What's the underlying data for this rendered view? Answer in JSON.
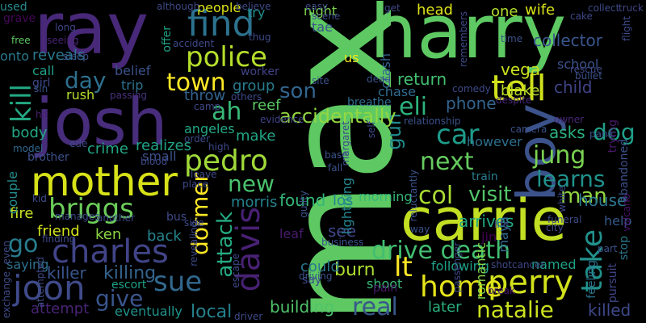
{
  "words": [
    {
      "text": "max",
      "color": "#5ec962",
      "vertical": true
    },
    {
      "text": "harry",
      "color": "#5ec962",
      "vertical": false
    },
    {
      "text": "ray",
      "color": "#482878",
      "vertical": false
    },
    {
      "text": "josh",
      "color": "#472d7b",
      "vertical": false
    },
    {
      "text": "carrie",
      "color": "#c2df23",
      "vertical": false
    },
    {
      "text": "mother",
      "color": "#d8e219",
      "vertical": false
    },
    {
      "text": "boy",
      "color": "#3b528b",
      "vertical": true
    },
    {
      "text": "find",
      "color": "#2c728e",
      "vertical": false
    },
    {
      "text": "tell",
      "color": "#d0e11c",
      "vertical": false
    },
    {
      "text": "police",
      "color": "#b5de2b",
      "vertical": false
    },
    {
      "text": "town",
      "color": "#fde725",
      "vertical": false
    },
    {
      "text": "charles",
      "color": "#414487",
      "vertical": false
    },
    {
      "text": "davis",
      "color": "#482173",
      "vertical": true
    },
    {
      "text": "joon",
      "color": "#3e4a89",
      "vertical": false
    },
    {
      "text": "perry",
      "color": "#d2e21b",
      "vertical": false
    },
    {
      "text": "drive death",
      "color": "#42be71",
      "vertical": false
    },
    {
      "text": "home",
      "color": "#e5e419",
      "vertical": false
    },
    {
      "text": "pedro",
      "color": "#a0da39",
      "vertical": false
    },
    {
      "text": "dog",
      "color": "#1f9f88",
      "vertical": false
    },
    {
      "text": "car",
      "color": "#1e9b8a",
      "vertical": false
    },
    {
      "text": "next",
      "color": "#65cb5e",
      "vertical": false
    },
    {
      "text": "col",
      "color": "#aadc32",
      "vertical": false
    },
    {
      "text": "jung",
      "color": "#7ad151",
      "vertical": false
    },
    {
      "text": "take",
      "color": "#21918c",
      "vertical": true
    },
    {
      "text": "briggs",
      "color": "#6ccd5a",
      "vertical": false
    },
    {
      "text": "kill",
      "color": "#23a983",
      "vertical": true
    },
    {
      "text": "go",
      "color": "#287c8e",
      "vertical": false
    },
    {
      "text": "lt",
      "color": "#fde725",
      "vertical": false
    },
    {
      "text": "dormer",
      "color": "#fde725",
      "vertical": true
    },
    {
      "text": "attack",
      "color": "#25ac82",
      "vertical": true
    },
    {
      "text": "sue",
      "color": "#31688e",
      "vertical": false
    },
    {
      "text": "real",
      "color": "#38588c",
      "vertical": false
    },
    {
      "text": "natalie",
      "color": "#cae11f",
      "vertical": false
    },
    {
      "text": "give",
      "color": "#3a548c",
      "vertical": false
    },
    {
      "text": "day",
      "color": "#2d708e",
      "vertical": false
    },
    {
      "text": "ah",
      "color": "#38b977",
      "vertical": false
    },
    {
      "text": "son",
      "color": "#32658e",
      "vertical": false
    },
    {
      "text": "eli",
      "color": "#2db27d",
      "vertical": false
    },
    {
      "text": "gun",
      "color": "#228c8d",
      "vertical": true
    },
    {
      "text": "new",
      "color": "#4ac16d",
      "vertical": false
    },
    {
      "text": "learns",
      "color": "#20928c",
      "vertical": false
    },
    {
      "text": "visit",
      "color": "#52c569",
      "vertical": false
    },
    {
      "text": "man",
      "color": "#93d741",
      "vertical": false
    },
    {
      "text": "return",
      "color": "#43bf71",
      "vertical": false
    },
    {
      "text": "phone",
      "color": "#33638d",
      "vertical": false
    },
    {
      "text": "accidentally",
      "color": "#93d741",
      "vertical": false
    },
    {
      "text": "building",
      "color": "#50c46a",
      "vertical": false
    },
    {
      "text": "killer",
      "color": "#39558c",
      "vertical": false
    },
    {
      "text": "killing",
      "color": "#33638d",
      "vertical": false
    },
    {
      "text": "killed",
      "color": "#3f4889",
      "vertical": false
    },
    {
      "text": "local",
      "color": "#26828e",
      "vertical": false
    },
    {
      "text": "attempt",
      "color": "#482475",
      "vertical": false
    },
    {
      "text": "eventually",
      "color": "#20938c",
      "vertical": false
    },
    {
      "text": "later",
      "color": "#29af7f",
      "vertical": false
    },
    {
      "text": "found",
      "color": "#34b679",
      "vertical": false
    },
    {
      "text": "see",
      "color": "#3f4788",
      "vertical": false
    },
    {
      "text": "burn",
      "color": "#addc30",
      "vertical": false
    },
    {
      "text": "could",
      "color": "#29798e",
      "vertical": false
    },
    {
      "text": "shoot",
      "color": "#37b878",
      "vertical": false
    },
    {
      "text": "lightning",
      "color": "#24868e",
      "vertical": true
    },
    {
      "text": "morning",
      "color": "#35b779",
      "vertical": false
    },
    {
      "text": "arrives",
      "color": "#22a884",
      "vertical": false
    },
    {
      "text": "house",
      "color": "#2a778e",
      "vertical": false
    },
    {
      "text": "help",
      "color": "#38598c",
      "vertical": false
    },
    {
      "text": "feeling",
      "color": "#2c728e",
      "vertical": true
    },
    {
      "text": "pursuit",
      "color": "#404688",
      "vertical": true
    },
    {
      "text": "stop",
      "color": "#2a788e",
      "vertical": true
    },
    {
      "text": "following",
      "color": "#1fa088",
      "vertical": false
    },
    {
      "text": "pain",
      "color": "#48186a",
      "vertical": false
    },
    {
      "text": "say",
      "color": "#3e4a89",
      "vertical": false
    },
    {
      "text": "maya",
      "color": "#306a8e",
      "vertical": true
    },
    {
      "text": "jin",
      "color": "#440154",
      "vertical": false
    },
    {
      "text": "however",
      "color": "#2e6f8e",
      "vertical": false
    },
    {
      "text": "named",
      "color": "#1fa187",
      "vertical": false
    },
    {
      "text": "asks",
      "color": "#2ab07f",
      "vertical": false
    },
    {
      "text": "child",
      "color": "#404387",
      "vertical": false
    },
    {
      "text": "school",
      "color": "#3b528b",
      "vertical": false
    },
    {
      "text": "blake",
      "color": "#bade28",
      "vertical": false
    },
    {
      "text": "vega",
      "color": "#cae11f",
      "vertical": false
    },
    {
      "text": "romantic",
      "color": "#86d549",
      "vertical": true
    },
    {
      "text": "collector",
      "color": "#39568c",
      "vertical": false
    },
    {
      "text": "head",
      "color": "#dde318",
      "vertical": false
    },
    {
      "text": "one",
      "color": "#b2dd2d",
      "vertical": false
    },
    {
      "text": "wife",
      "color": "#d8e219",
      "vertical": false
    },
    {
      "text": "night",
      "color": "#7fd34e",
      "vertical": false
    },
    {
      "text": "tae",
      "color": "#3a538b",
      "vertical": false
    },
    {
      "text": "try",
      "color": "#21908d",
      "vertical": false
    },
    {
      "text": "group",
      "color": "#297b8e",
      "vertical": false
    },
    {
      "text": "make",
      "color": "#22a785",
      "vertical": false
    },
    {
      "text": "reef",
      "color": "#5cc863",
      "vertical": false
    },
    {
      "text": "morris",
      "color": "#26828e",
      "vertical": false
    },
    {
      "text": "los",
      "color": "#24878e",
      "vertical": false
    },
    {
      "text": "leaf",
      "color": "#481b6d",
      "vertical": false
    },
    {
      "text": "realizes",
      "color": "#20a386",
      "vertical": false
    },
    {
      "text": "crime",
      "color": "#22a785",
      "vertical": false
    },
    {
      "text": "trip",
      "color": "#2d718e",
      "vertical": false
    },
    {
      "text": "throw",
      "color": "#32648e",
      "vertical": false
    },
    {
      "text": "angeles",
      "color": "#22a785",
      "vertical": false
    },
    {
      "text": "small",
      "color": "#3c508b",
      "vertical": false
    },
    {
      "text": "fire",
      "color": "#c5e021",
      "vertical": false
    },
    {
      "text": "friend",
      "color": "#d2e21b",
      "vertical": false
    },
    {
      "text": "ken",
      "color": "#8bd646",
      "vertical": false
    },
    {
      "text": "back",
      "color": "#25848e",
      "vertical": false
    },
    {
      "text": "escort",
      "color": "#1fa188",
      "vertical": false
    },
    {
      "text": "body",
      "color": "#22a785",
      "vertical": false
    },
    {
      "text": "couple",
      "color": "#238a8d",
      "vertical": true
    },
    {
      "text": "saying",
      "color": "#2d718e",
      "vertical": false
    },
    {
      "text": "reveals",
      "color": "#2a788e",
      "vertical": false
    },
    {
      "text": "call",
      "color": "#1fa088",
      "vertical": false
    },
    {
      "text": "girl",
      "color": "#3e4989",
      "vertical": false
    },
    {
      "text": "rush",
      "color": "#b5de2b",
      "vertical": false
    },
    {
      "text": "belief",
      "color": "#3b528b",
      "vertical": false
    },
    {
      "text": "crash",
      "color": "#33638d",
      "vertical": true
    },
    {
      "text": "chase",
      "color": "#2f6c8e",
      "vertical": false
    },
    {
      "text": "breathe",
      "color": "#2f6c8e",
      "vertical": false
    },
    {
      "text": "break",
      "color": "#48186a",
      "vertical": false
    },
    {
      "text": "brother",
      "color": "#3c508b",
      "vertical": false
    },
    {
      "text": "model",
      "color": "#31688e",
      "vertical": false
    },
    {
      "text": "bus",
      "color": "#3e4a89",
      "vertical": false
    },
    {
      "text": "people",
      "color": "#dde318",
      "vertical": false
    },
    {
      "text": "us",
      "color": "#f1e51d",
      "vertical": false
    },
    {
      "text": "abandoned",
      "color": "#3c508b",
      "vertical": true
    },
    {
      "text": "trying",
      "color": "#48186a",
      "vertical": true
    },
    {
      "text": "onto",
      "color": "#2a788e",
      "vertical": false
    },
    {
      "text": "grave",
      "color": "#46075a",
      "vertical": false
    },
    {
      "text": "used",
      "color": "#238a8d",
      "vertical": false
    },
    {
      "text": "offer",
      "color": "#20a386",
      "vertical": true
    },
    {
      "text": "worker",
      "color": "#404387",
      "vertical": false
    },
    {
      "text": "sleep",
      "color": "#3b528b",
      "vertical": false
    },
    {
      "text": "free",
      "color": "#5ec962",
      "vertical": false
    },
    {
      "text": "sin",
      "color": "#3b528b",
      "vertical": false
    },
    {
      "text": "passing",
      "color": "#46327e",
      "vertical": false
    },
    {
      "text": "hit",
      "color": "#481f70",
      "vertical": false
    },
    {
      "text": "long",
      "color": "#414487",
      "vertical": false
    },
    {
      "text": "seeing",
      "color": "#482475",
      "vertical": false
    },
    {
      "text": "collect",
      "color": "#3e4a89",
      "vertical": false
    },
    {
      "text": "truck",
      "color": "#404688",
      "vertical": false
    },
    {
      "text": "cake",
      "color": "#3f4788",
      "vertical": false
    },
    {
      "text": "time",
      "color": "#3b528b",
      "vertical": false
    },
    {
      "text": "flight",
      "color": "#3e4a89",
      "vertical": true
    },
    {
      "text": "rescue",
      "color": "#3e4989",
      "vertical": false
    },
    {
      "text": "bullet",
      "color": "#3b528b",
      "vertical": false
    },
    {
      "text": "funeral",
      "color": "#3e4a89",
      "vertical": false
    },
    {
      "text": "panic",
      "color": "#3b528b",
      "vertical": false
    },
    {
      "text": "camera",
      "color": "#3b528b",
      "vertical": false
    },
    {
      "text": "despite",
      "color": "#482878",
      "vertical": false
    },
    {
      "text": "owner",
      "color": "#482878",
      "vertical": false
    },
    {
      "text": "cancer",
      "color": "#404588",
      "vertical": false
    },
    {
      "text": "volcano",
      "color": "#471164",
      "vertical": true
    },
    {
      "text": "part",
      "color": "#3b528b",
      "vertical": false
    },
    {
      "text": "city",
      "color": "#3e4a89",
      "vertical": false
    },
    {
      "text": "way",
      "color": "#3b528b",
      "vertical": false
    },
    {
      "text": "train",
      "color": "#287c8e",
      "vertical": false
    },
    {
      "text": "reluctantly",
      "color": "#3b528b",
      "vertical": true
    },
    {
      "text": "relationship",
      "color": "#3b528b",
      "vertical": false
    },
    {
      "text": "evidence",
      "color": "#404387",
      "vertical": false
    },
    {
      "text": "business",
      "color": "#3b528b",
      "vertical": false
    },
    {
      "text": "driving",
      "color": "#3b528b",
      "vertical": false
    },
    {
      "text": "driver",
      "color": "#3e4a89",
      "vertical": false
    },
    {
      "text": "dead",
      "color": "#3b528b",
      "vertical": false
    },
    {
      "text": "site",
      "color": "#3b528b",
      "vertical": false
    },
    {
      "text": "base",
      "color": "#3b528b",
      "vertical": false
    },
    {
      "text": "fall",
      "color": "#3b528b",
      "vertical": false
    },
    {
      "text": "guilty",
      "color": "#3b528b",
      "vertical": true
    },
    {
      "text": "camp",
      "color": "#3e4a89",
      "vertical": false
    },
    {
      "text": "order",
      "color": "#3e4a89",
      "vertical": false
    },
    {
      "text": "accident",
      "color": "#3e4989",
      "vertical": false
    },
    {
      "text": "thug",
      "color": "#3e4a89",
      "vertical": false
    },
    {
      "text": "others",
      "color": "#3e4a89",
      "vertical": false
    },
    {
      "text": "although",
      "color": "#3e4a89",
      "vertical": false
    },
    {
      "text": "believe",
      "color": "#3e4a89",
      "vertical": false
    },
    {
      "text": "easy",
      "color": "#3e4a89",
      "vertical": false
    },
    {
      "text": "scene",
      "color": "#3e4a89",
      "vertical": false
    },
    {
      "text": "get",
      "color": "#3e4a89",
      "vertical": false
    },
    {
      "text": "remembers",
      "color": "#3e4a89",
      "vertical": true
    },
    {
      "text": "comedy",
      "color": "#3e4a89",
      "vertical": false
    },
    {
      "text": "high",
      "color": "#3e4a89",
      "vertical": false
    },
    {
      "text": "blood",
      "color": "#3e4a89",
      "vertical": false
    },
    {
      "text": "leave",
      "color": "#3e4a89",
      "vertical": false
    },
    {
      "text": "place",
      "color": "#3e4a89",
      "vertical": false
    },
    {
      "text": "revealing",
      "color": "#3e4a89",
      "vertical": true
    },
    {
      "text": "another",
      "color": "#3e4a89",
      "vertical": false
    },
    {
      "text": "side",
      "color": "#3e4a89",
      "vertical": false
    },
    {
      "text": "manages",
      "color": "#3e4a89",
      "vertical": false
    },
    {
      "text": "kid",
      "color": "#3e4a89",
      "vertical": false
    },
    {
      "text": "even",
      "color": "#3e4a89",
      "vertical": true
    },
    {
      "text": "exchange",
      "color": "#3e4a89",
      "vertical": true
    },
    {
      "text": "finding",
      "color": "#3e4a89",
      "vertical": false
    },
    {
      "text": "escape",
      "color": "#3e4a89",
      "vertical": true
    },
    {
      "text": "margaret",
      "color": "#3e4a89",
      "vertical": true
    },
    {
      "text": "self",
      "color": "#3e4a89",
      "vertical": true
    },
    {
      "text": "white",
      "color": "#3e4a89",
      "vertical": true
    },
    {
      "text": "shot",
      "color": "#3e4a89",
      "vertical": false
    },
    {
      "text": "life",
      "color": "#3e4a89",
      "vertical": false
    },
    {
      "text": "passenger",
      "color": "#3e4a89",
      "vertical": true
    },
    {
      "text": "attempted",
      "color": "#3e4a89",
      "vertical": true
    },
    {
      "text": "ede",
      "color": "#3e4a89",
      "vertical": false
    }
  ]
}
